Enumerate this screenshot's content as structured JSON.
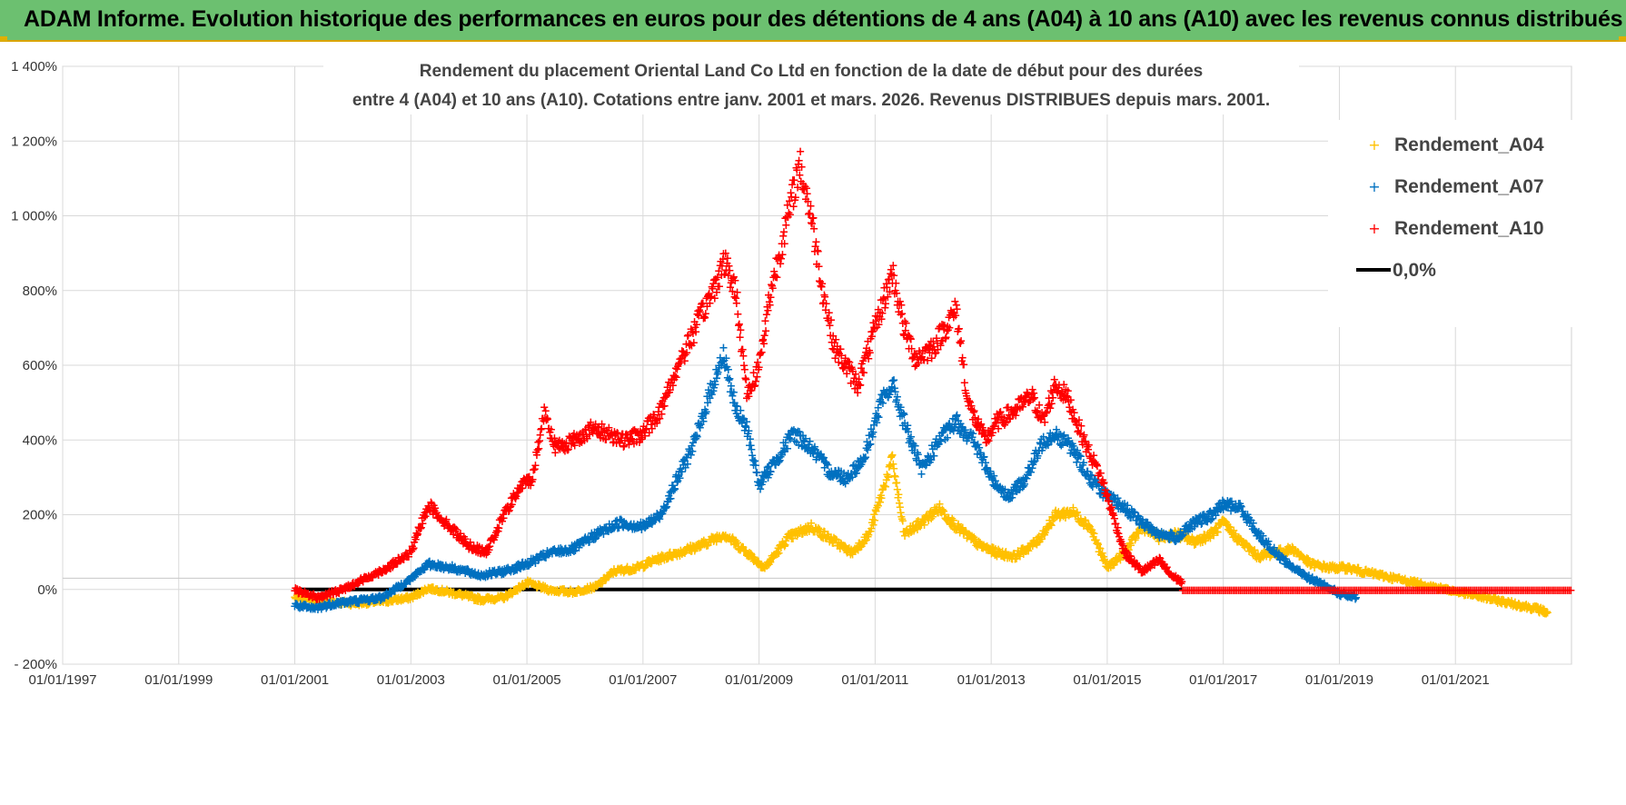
{
  "header": {
    "title": "ADAM Informe. Evolution historique des performances en euros pour des détentions de 4 ans (A04) à 10 ans (A10) avec les revenus connus distribués"
  },
  "colors": {
    "banner": "#6cc070",
    "a04": "#ffc000",
    "a07": "#0070c0",
    "a10": "#ff0000",
    "zero": "#000000"
  },
  "chart_data": {
    "type": "scatter",
    "title_line1": "Rendement du placement Oriental Land Co Ltd en fonction de la date de début pour des durées",
    "title_line2": "entre 4 (A04) et 10 ans (A10).  Cotations entre janv. 2001 et mars. 2026. Revenus DISTRIBUES depuis mars. 2001.",
    "xlabel": "",
    "ylabel": "",
    "xlim": [
      1997.0,
      2023.0
    ],
    "ylim": [
      -200,
      1400
    ],
    "y_ticks": [
      -200,
      0,
      200,
      400,
      600,
      800,
      1000,
      1200,
      1400
    ],
    "y_tick_labels": [
      "- 200%",
      "0%",
      "200%",
      "400%",
      "600%",
      "800%",
      "1 000%",
      "1 200%",
      "1 400%"
    ],
    "x_ticks": [
      1997,
      1999,
      2001,
      2003,
      2005,
      2007,
      2009,
      2011,
      2013,
      2015,
      2017,
      2019,
      2021
    ],
    "x_tick_labels": [
      "01/01/1997",
      "01/01/1999",
      "01/01/2001",
      "01/01/2003",
      "01/01/2005",
      "01/01/2007",
      "01/01/2009",
      "01/01/2011",
      "01/01/2013",
      "01/01/2015",
      "01/01/2017",
      "01/01/2019",
      "01/01/2021"
    ],
    "legend": [
      "Rendement_A04",
      "Rendement_A07",
      "Rendement_A10",
      "0,0%"
    ],
    "legend_position": "top-right",
    "series": [
      {
        "name": "Rendement_A04",
        "x": [
          2001.0,
          2001.5,
          2002.0,
          2002.5,
          2003.0,
          2003.3,
          2003.8,
          2004.2,
          2004.6,
          2005.0,
          2005.4,
          2005.8,
          2006.2,
          2006.5,
          2006.9,
          2007.2,
          2007.6,
          2008.0,
          2008.4,
          2008.8,
          2009.1,
          2009.5,
          2009.9,
          2010.3,
          2010.6,
          2010.9,
          2011.1,
          2011.3,
          2011.5,
          2011.8,
          2012.1,
          2012.4,
          2012.8,
          2013.1,
          2013.4,
          2013.8,
          2014.1,
          2014.4,
          2014.7,
          2015.0,
          2015.3,
          2015.6,
          2015.9,
          2016.2,
          2016.5,
          2016.8,
          2017.0,
          2017.3,
          2017.6,
          2017.9,
          2018.2,
          2018.5,
          2018.8,
          2019.1,
          2019.4,
          2019.7,
          2020.0,
          2020.3,
          2020.6,
          2020.9,
          2021.2,
          2021.5,
          2021.8,
          2022.1,
          2022.4,
          2022.6
        ],
        "values": [
          -20,
          -30,
          -35,
          -30,
          -20,
          5,
          -10,
          -25,
          -20,
          20,
          0,
          -5,
          10,
          50,
          60,
          80,
          100,
          120,
          150,
          100,
          60,
          140,
          170,
          130,
          100,
          150,
          250,
          350,
          150,
          180,
          220,
          170,
          120,
          100,
          90,
          130,
          200,
          210,
          170,
          60,
          100,
          170,
          140,
          150,
          130,
          150,
          180,
          130,
          90,
          100,
          110,
          70,
          60,
          60,
          50,
          40,
          30,
          20,
          10,
          0,
          -10,
          -20,
          -30,
          -40,
          -50,
          -60
        ]
      },
      {
        "name": "Rendement_A07",
        "x": [
          2001.0,
          2001.3,
          2001.7,
          2002.0,
          2002.5,
          2003.0,
          2003.3,
          2003.7,
          2004.2,
          2004.6,
          2005.0,
          2005.4,
          2005.8,
          2006.2,
          2006.6,
          2007.0,
          2007.3,
          2007.6,
          2007.9,
          2008.2,
          2008.4,
          2008.6,
          2008.8,
          2009.0,
          2009.3,
          2009.6,
          2009.9,
          2010.2,
          2010.5,
          2010.8,
          2011.1,
          2011.3,
          2011.5,
          2011.8,
          2012.1,
          2012.4,
          2012.7,
          2013.0,
          2013.3,
          2013.6,
          2013.9,
          2014.1,
          2014.4,
          2014.7,
          2015.0,
          2015.3,
          2015.6,
          2015.9,
          2016.2,
          2016.5,
          2016.8,
          2017.0,
          2017.3,
          2017.6,
          2017.9,
          2018.2,
          2018.5,
          2018.8,
          2019.0,
          2019.3
        ],
        "values": [
          -40,
          -50,
          -35,
          -30,
          -20,
          30,
          70,
          60,
          40,
          50,
          70,
          100,
          110,
          150,
          180,
          170,
          200,
          300,
          400,
          550,
          630,
          480,
          430,
          280,
          350,
          420,
          380,
          320,
          300,
          350,
          500,
          550,
          450,
          320,
          400,
          450,
          400,
          300,
          250,
          300,
          400,
          420,
          380,
          300,
          250,
          220,
          180,
          150,
          140,
          180,
          200,
          230,
          220,
          150,
          100,
          60,
          30,
          10,
          -10,
          -20
        ]
      },
      {
        "name": "Rendement_A10",
        "x": [
          2001.0,
          2001.4,
          2001.8,
          2002.2,
          2002.6,
          2003.0,
          2003.3,
          2003.6,
          2004.0,
          2004.3,
          2004.6,
          2004.9,
          2005.1,
          2005.3,
          2005.5,
          2005.8,
          2006.1,
          2006.4,
          2006.7,
          2007.0,
          2007.3,
          2007.6,
          2007.9,
          2008.2,
          2008.4,
          2008.6,
          2008.8,
          2009.0,
          2009.2,
          2009.5,
          2009.7,
          2009.9,
          2010.1,
          2010.3,
          2010.5,
          2010.7,
          2010.9,
          2011.1,
          2011.3,
          2011.5,
          2011.7,
          2012.0,
          2012.2,
          2012.4,
          2012.6,
          2012.9,
          2013.1,
          2013.4,
          2013.7,
          2013.9,
          2014.1,
          2014.3,
          2014.6,
          2014.9,
          2015.1,
          2015.3,
          2015.6,
          2015.9,
          2016.1,
          2016.3
        ],
        "values": [
          0,
          -20,
          0,
          30,
          60,
          100,
          230,
          180,
          120,
          100,
          200,
          280,
          300,
          480,
          380,
          400,
          430,
          420,
          400,
          420,
          480,
          600,
          700,
          800,
          880,
          800,
          520,
          600,
          800,
          1000,
          1140,
          1000,
          800,
          650,
          600,
          550,
          650,
          750,
          850,
          700,
          620,
          650,
          700,
          750,
          500,
          400,
          450,
          480,
          520,
          450,
          550,
          520,
          400,
          300,
          200,
          100,
          50,
          80,
          40,
          20
        ]
      },
      {
        "name": "Rendement_A10_flat",
        "x": [
          2016.3,
          2023.0
        ],
        "values": [
          0,
          0
        ]
      },
      {
        "name": "0,0%",
        "x": [
          2001.0,
          2016.3
        ],
        "values": [
          0,
          0
        ]
      }
    ]
  }
}
